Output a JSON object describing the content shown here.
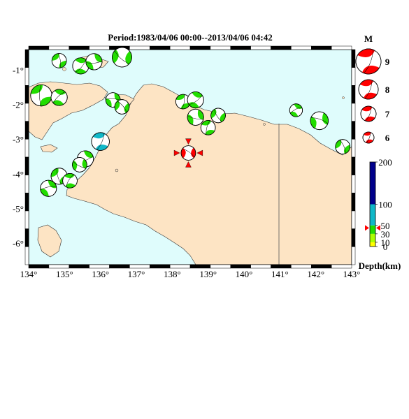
{
  "title": "Period:1983/04/06 00:00--2013/04/06 04:42",
  "map": {
    "lon_range": [
      134,
      143
    ],
    "lat_range": [
      -6.6,
      -0.4
    ],
    "lon_ticks": [
      134,
      135,
      136,
      137,
      138,
      139,
      140,
      141,
      142,
      143
    ],
    "lat_ticks": [
      -1,
      -2,
      -3,
      -4,
      -5,
      -6
    ],
    "lon_tick_labels": [
      "134°",
      "135°",
      "136°",
      "137°",
      "138°",
      "139°",
      "140°",
      "141°",
      "142°",
      "143°"
    ],
    "lat_tick_labels": [
      "-1°",
      "-2°",
      "-3°",
      "-4°",
      "-5°",
      "-6°"
    ],
    "colors": {
      "sea": "#dffcfc",
      "land": "#fde4c4",
      "shallow": "#22dd00",
      "intermediate": "#10b8c8",
      "main_event": "#ff0000"
    }
  },
  "events": [
    {
      "lon": 134.85,
      "lat": -0.72,
      "mag": 6.2,
      "depth_class": "shallow"
    },
    {
      "lon": 135.45,
      "lat": -0.87,
      "mag": 6.3,
      "depth_class": "shallow"
    },
    {
      "lon": 135.82,
      "lat": -0.75,
      "mag": 6.3,
      "depth_class": "shallow"
    },
    {
      "lon": 136.6,
      "lat": -0.62,
      "mag": 6.5,
      "depth_class": "shallow"
    },
    {
      "lon": 134.35,
      "lat": -1.72,
      "mag": 6.6,
      "depth_class": "shallow"
    },
    {
      "lon": 134.85,
      "lat": -1.78,
      "mag": 6.3,
      "depth_class": "shallow"
    },
    {
      "lon": 136.35,
      "lat": -1.85,
      "mag": 6.2,
      "depth_class": "shallow"
    },
    {
      "lon": 136.6,
      "lat": -2.05,
      "mag": 6.2,
      "depth_class": "shallow"
    },
    {
      "lon": 138.3,
      "lat": -1.9,
      "mag": 6.2,
      "depth_class": "shallow"
    },
    {
      "lon": 138.65,
      "lat": -1.85,
      "mag": 6.3,
      "depth_class": "shallow"
    },
    {
      "lon": 138.65,
      "lat": -2.35,
      "mag": 6.3,
      "depth_class": "shallow"
    },
    {
      "lon": 139.28,
      "lat": -2.3,
      "mag": 6.2,
      "depth_class": "shallow"
    },
    {
      "lon": 139.0,
      "lat": -2.65,
      "mag": 6.2,
      "depth_class": "shallow"
    },
    {
      "lon": 141.45,
      "lat": -2.15,
      "mag": 6.1,
      "depth_class": "shallow"
    },
    {
      "lon": 142.1,
      "lat": -2.45,
      "mag": 6.4,
      "depth_class": "shallow"
    },
    {
      "lon": 142.75,
      "lat": -3.2,
      "mag": 6.2,
      "depth_class": "shallow"
    },
    {
      "lon": 136.0,
      "lat": -3.05,
      "mag": 6.4,
      "depth_class": "intermediate"
    },
    {
      "lon": 135.58,
      "lat": -3.55,
      "mag": 6.3,
      "depth_class": "shallow"
    },
    {
      "lon": 135.42,
      "lat": -3.72,
      "mag": 6.2,
      "depth_class": "shallow"
    },
    {
      "lon": 134.85,
      "lat": -4.05,
      "mag": 6.3,
      "depth_class": "shallow"
    },
    {
      "lon": 135.15,
      "lat": -4.18,
      "mag": 6.2,
      "depth_class": "shallow"
    },
    {
      "lon": 134.55,
      "lat": -4.4,
      "mag": 6.3,
      "depth_class": "shallow"
    },
    {
      "lon": 138.45,
      "lat": -3.38,
      "mag": 6.2,
      "depth_class": "main"
    }
  ],
  "legend": {
    "heading": "M",
    "entries": [
      {
        "label": "9"
      },
      {
        "label": "8"
      },
      {
        "label": "7"
      },
      {
        "label": "6"
      }
    ]
  },
  "depth_scale": {
    "labels": [
      "200",
      "100",
      "50",
      "30",
      "10",
      "0"
    ],
    "values": [
      200,
      100,
      50,
      30,
      10,
      0
    ],
    "marker_value": 44,
    "caption": "Depth(km)"
  }
}
